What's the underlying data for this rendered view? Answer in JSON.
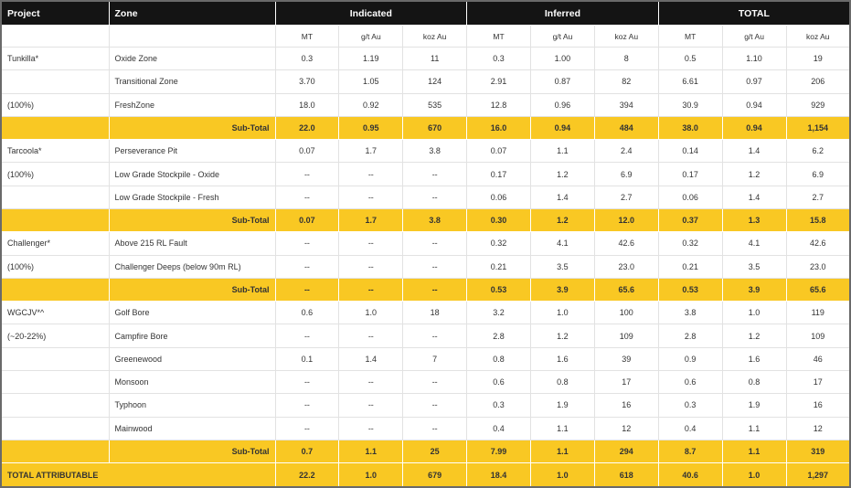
{
  "header": {
    "columns": [
      "Project",
      "Zone",
      "Indicated",
      "Inferred",
      "TOTAL"
    ],
    "units": [
      "MT",
      "g/t Au",
      "koz Au",
      "MT",
      "g/t Au",
      "koz Au",
      "MT",
      "g/t Au",
      "koz Au"
    ]
  },
  "sections": [
    {
      "rows": [
        {
          "project": "Tunkilla*",
          "zone": "Oxide Zone",
          "values": [
            "0.3",
            "1.19",
            "11",
            "0.3",
            "1.00",
            "8",
            "0.5",
            "1.10",
            "19"
          ]
        },
        {
          "zone": "Transitional Zone",
          "values": [
            "3.70",
            "1.05",
            "124",
            "2.91",
            "0.87",
            "82",
            "6.61",
            "0.97",
            "206"
          ]
        },
        {
          "project": "(100%)",
          "zone": "FreshZone",
          "values": [
            "18.0",
            "0.92",
            "535",
            "12.8",
            "0.96",
            "394",
            "30.9",
            "0.94",
            "929"
          ]
        }
      ],
      "subtotal": {
        "label": "Sub-Total",
        "values": [
          "22.0",
          "0.95",
          "670",
          "16.0",
          "0.94",
          "484",
          "38.0",
          "0.94",
          "1,154"
        ]
      }
    },
    {
      "rows": [
        {
          "project": "Tarcoola*",
          "zone": "Perseverance Pit",
          "values": [
            "0.07",
            "1.7",
            "3.8",
            "0.07",
            "1.1",
            "2.4",
            "0.14",
            "1.4",
            "6.2"
          ]
        },
        {
          "project": "(100%)",
          "zone": "Low Grade Stockpile - Oxide",
          "values": [
            "--",
            "--",
            "--",
            "0.17",
            "1.2",
            "6.9",
            "0.17",
            "1.2",
            "6.9"
          ]
        },
        {
          "zone": "Low Grade Stockpile - Fresh",
          "values": [
            "--",
            "--",
            "--",
            "0.06",
            "1.4",
            "2.7",
            "0.06",
            "1.4",
            "2.7"
          ]
        }
      ],
      "subtotal": {
        "label": "Sub-Total",
        "values": [
          "0.07",
          "1.7",
          "3.8",
          "0.30",
          "1.2",
          "12.0",
          "0.37",
          "1.3",
          "15.8"
        ]
      }
    },
    {
      "rows": [
        {
          "project": "Challenger*",
          "zone": "Above 215 RL Fault",
          "values": [
            "--",
            "--",
            "--",
            "0.32",
            "4.1",
            "42.6",
            "0.32",
            "4.1",
            "42.6"
          ]
        },
        {
          "project": "(100%)",
          "zone": "Challenger Deeps (below 90m RL)",
          "values": [
            "--",
            "--",
            "--",
            "0.21",
            "3.5",
            "23.0",
            "0.21",
            "3.5",
            "23.0"
          ]
        }
      ],
      "subtotal": {
        "label": "Sub-Total",
        "values": [
          "--",
          "--",
          "--",
          "0.53",
          "3.9",
          "65.6",
          "0.53",
          "3.9",
          "65.6"
        ]
      }
    },
    {
      "rows": [
        {
          "project": "WGCJV*^",
          "zone": "Golf Bore",
          "values": [
            "0.6",
            "1.0",
            "18",
            "3.2",
            "1.0",
            "100",
            "3.8",
            "1.0",
            "119"
          ]
        },
        {
          "project": "(~20-22%)",
          "zone": "Campfire Bore",
          "values": [
            "--",
            "--",
            "--",
            "2.8",
            "1.2",
            "109",
            "2.8",
            "1.2",
            "109"
          ]
        },
        {
          "zone": "Greenewood",
          "values": [
            "0.1",
            "1.4",
            "7",
            "0.8",
            "1.6",
            "39",
            "0.9",
            "1.6",
            "46"
          ]
        },
        {
          "zone": "Monsoon",
          "values": [
            "--",
            "--",
            "--",
            "0.6",
            "0.8",
            "17",
            "0.6",
            "0.8",
            "17"
          ]
        },
        {
          "zone": "Typhoon",
          "values": [
            "--",
            "--",
            "--",
            "0.3",
            "1.9",
            "16",
            "0.3",
            "1.9",
            "16"
          ]
        },
        {
          "zone": "Mainwood",
          "values": [
            "--",
            "--",
            "--",
            "0.4",
            "1.1",
            "12",
            "0.4",
            "1.1",
            "12"
          ]
        }
      ],
      "subtotal": {
        "label": "Sub-Total",
        "values": [
          "0.7",
          "1.1",
          "25",
          "7.99",
          "1.1",
          "294",
          "8.7",
          "1.1",
          "319"
        ]
      }
    }
  ],
  "total": {
    "label": "TOTAL ATTRIBUTABLE",
    "values": [
      "22.2",
      "1.0",
      "679",
      "18.4",
      "1.0",
      "618",
      "40.6",
      "1.0",
      "1,297"
    ]
  }
}
